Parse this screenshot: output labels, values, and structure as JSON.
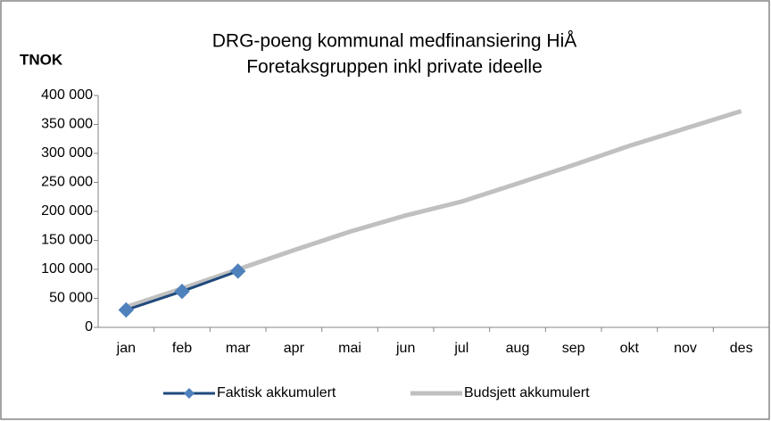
{
  "chart_data": {
    "type": "line",
    "title": "DRG-poeng kommunal medfinansiering HiÅ",
    "subtitle": "Foretaksgruppen inkl private ideelle",
    "y_label": "TNOK",
    "categories": [
      "jan",
      "feb",
      "mar",
      "apr",
      "mai",
      "jun",
      "jul",
      "aug",
      "sep",
      "okt",
      "nov",
      "des"
    ],
    "series": [
      {
        "name": "Faktisk akkumulert",
        "color": "#1f497d",
        "marker_color": "#4f81bd",
        "marker": "diamond",
        "values": [
          30000,
          62000,
          97000,
          null,
          null,
          null,
          null,
          null,
          null,
          null,
          null,
          null
        ]
      },
      {
        "name": "Budsjett akkumulert",
        "color": "#c0c0c0",
        "values": [
          35000,
          67000,
          100000,
          133000,
          165000,
          193000,
          217000,
          248000,
          280000,
          313000,
          343000,
          373000
        ]
      }
    ],
    "ylim": [
      0,
      400000
    ],
    "yticks": [
      0,
      {
        "value": 50000,
        "label": "50 000"
      },
      {
        "value": 100000,
        "label": "100 000"
      },
      {
        "value": 150000,
        "label": "150 000"
      },
      {
        "value": 200000,
        "label": "200 000"
      },
      {
        "value": 250000,
        "label": "250 000"
      },
      {
        "value": 300000,
        "label": "300 000"
      },
      {
        "value": 350000,
        "label": "350 000"
      },
      {
        "value": 400000,
        "label": "400 000"
      }
    ],
    "legend": "bottom"
  }
}
